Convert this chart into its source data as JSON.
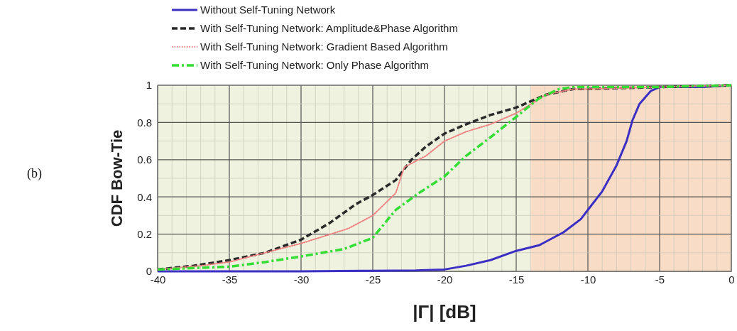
{
  "chart_data": {
    "type": "line",
    "xlabel": "|Γ| [dB]",
    "ylabel": "CDF Bow-Tie",
    "annotations": [
      "(b)"
    ],
    "xlim": [
      -40,
      0
    ],
    "xticks": [
      -40,
      -35,
      -30,
      -25,
      -20,
      -15,
      -10,
      -5,
      0
    ],
    "ylim": [
      0,
      1
    ],
    "yticks": [
      0,
      0.2,
      0.4,
      0.6,
      0.8,
      1
    ],
    "grid": true,
    "legend": "top left",
    "bands": [
      {
        "axis": "x",
        "from": -40,
        "to": -14,
        "color": "#eef2df"
      },
      {
        "axis": "x",
        "from": -14,
        "to": 0,
        "color": "#f8dcc6"
      }
    ],
    "series": [
      {
        "name": "Without Self-Tuning Network",
        "color": "#3b2fc4",
        "line_style": "solid",
        "x": [
          -40,
          -30,
          -25,
          -22,
          -20,
          -18.5,
          -16.8,
          -15,
          -13.4,
          -11.7,
          -10.5,
          -10,
          -9,
          -8,
          -7.3,
          -6.9,
          -6.4,
          -5.6,
          -5,
          -2,
          0
        ],
        "values": [
          0,
          0,
          0.003,
          0.005,
          0.01,
          0.03,
          0.06,
          0.11,
          0.14,
          0.21,
          0.28,
          0.33,
          0.43,
          0.57,
          0.7,
          0.81,
          0.9,
          0.97,
          0.99,
          0.99,
          1
        ]
      },
      {
        "name": "With Self-Tuning Network: Amplitude&Phase Algorithm",
        "color": "#2a2a2a",
        "line_style": "dashed",
        "x": [
          -40,
          -37.5,
          -35,
          -32.5,
          -30,
          -28,
          -26.2,
          -25,
          -23.4,
          -22.3,
          -21.3,
          -20,
          -18.5,
          -16.8,
          -15,
          -12.9,
          -11,
          -10,
          -5,
          0
        ],
        "values": [
          0.01,
          0.03,
          0.06,
          0.1,
          0.17,
          0.26,
          0.36,
          0.41,
          0.49,
          0.6,
          0.67,
          0.74,
          0.79,
          0.84,
          0.88,
          0.95,
          0.98,
          0.98,
          0.99,
          1
        ]
      },
      {
        "name": "With Self-Tuning Network: Gradient Based Algorithm",
        "color": "#f08080",
        "line_style": "dotted",
        "x": [
          -40,
          -37,
          -35,
          -32.5,
          -30,
          -26.7,
          -25,
          -23.4,
          -22.8,
          -21.3,
          -20,
          -18.5,
          -16.8,
          -15,
          -12.9,
          -11,
          -10,
          -5,
          0
        ],
        "values": [
          0.01,
          0.03,
          0.05,
          0.1,
          0.15,
          0.23,
          0.3,
          0.42,
          0.56,
          0.62,
          0.7,
          0.75,
          0.79,
          0.85,
          0.95,
          0.98,
          0.98,
          0.99,
          1
        ]
      },
      {
        "name": "With Self-Tuning Network: Only Phase Algorithm",
        "color": "#33dd33",
        "line_style": "dashed",
        "x": [
          -40,
          -35,
          -32.5,
          -30,
          -27,
          -25,
          -23.4,
          -21.8,
          -20,
          -18.5,
          -16.8,
          -15,
          -13.4,
          -12,
          -11,
          -5,
          0
        ],
        "values": [
          0.01,
          0.025,
          0.05,
          0.08,
          0.12,
          0.18,
          0.33,
          0.42,
          0.51,
          0.62,
          0.72,
          0.83,
          0.93,
          0.98,
          0.99,
          0.99,
          1
        ]
      }
    ]
  }
}
